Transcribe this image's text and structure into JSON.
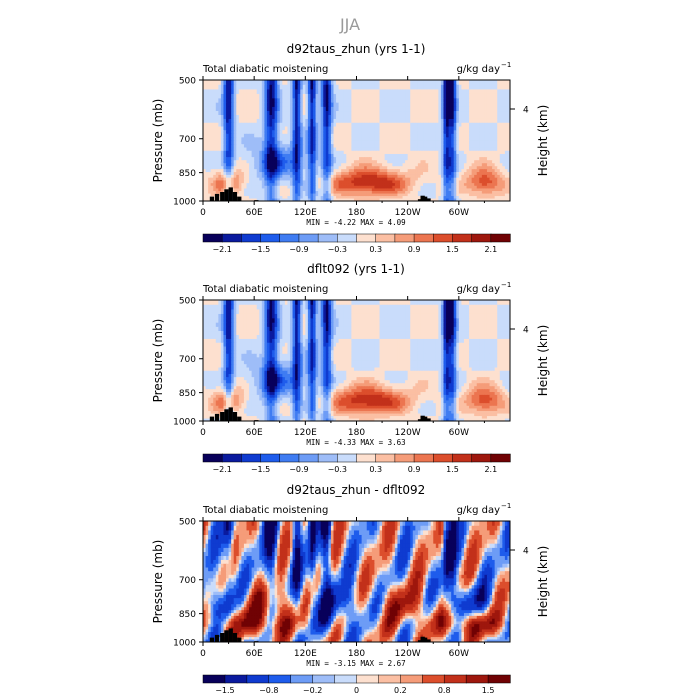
{
  "figure_title": "JJA",
  "chart_data": [
    {
      "type": "heatmap",
      "title": "d92taus_zhun (yrs 1-1)",
      "left_string": "Total diabatic moistening",
      "units": "g/kg day",
      "units_exp": "−1",
      "ylabel": "Pressure (mb)",
      "y2label": "Height (km)",
      "y_ticks": [
        "500",
        "700",
        "850",
        "1000"
      ],
      "y2_ticks": [
        "4"
      ],
      "x_ticks": [
        "0",
        "60E",
        "120E",
        "180",
        "120W",
        "60W"
      ],
      "stats_text": "MIN =   -4.22   MAX =   4.09",
      "min": -4.22,
      "max": 4.09,
      "colorbar_labels": [
        "−2.1",
        "−1.5",
        "−0.9",
        "−0.3",
        "0.3",
        "0.9",
        "1.5",
        "2.1"
      ],
      "colorbar_levels": [
        -2.4,
        -2.1,
        -1.8,
        -1.5,
        -1.2,
        -0.9,
        -0.6,
        -0.3,
        0,
        0.3,
        0.6,
        0.9,
        1.2,
        1.5,
        1.8,
        2.1,
        2.4
      ]
    },
    {
      "type": "heatmap",
      "title": "dflt092 (yrs 1-1)",
      "left_string": "Total diabatic moistening",
      "units": "g/kg day",
      "units_exp": "−1",
      "ylabel": "Pressure (mb)",
      "y2label": "Height (km)",
      "y_ticks": [
        "500",
        "700",
        "850",
        "1000"
      ],
      "y2_ticks": [
        "4"
      ],
      "x_ticks": [
        "0",
        "60E",
        "120E",
        "180",
        "120W",
        "60W"
      ],
      "stats_text": "MIN =   -4.33   MAX =   3.63",
      "min": -4.33,
      "max": 3.63,
      "colorbar_labels": [
        "−2.1",
        "−1.5",
        "−0.9",
        "−0.3",
        "0.3",
        "0.9",
        "1.5",
        "2.1"
      ],
      "colorbar_levels": [
        -2.4,
        -2.1,
        -1.8,
        -1.5,
        -1.2,
        -0.9,
        -0.6,
        -0.3,
        0,
        0.3,
        0.6,
        0.9,
        1.2,
        1.5,
        1.8,
        2.1,
        2.4
      ]
    },
    {
      "type": "heatmap",
      "title": "d92taus_zhun - dflt092",
      "left_string": "Total diabatic moistening",
      "units": "g/kg day",
      "units_exp": "−1",
      "ylabel": "Pressure (mb)",
      "y2label": "Height (km)",
      "y_ticks": [
        "500",
        "700",
        "850",
        "1000"
      ],
      "y2_ticks": [
        "4"
      ],
      "x_ticks": [
        "0",
        "60E",
        "120E",
        "180",
        "120W",
        "60W"
      ],
      "stats_text": "MIN =   -3.15   MAX =   2.67",
      "min": -3.15,
      "max": 2.67,
      "colorbar_labels": [
        "−1.5",
        "−0.8",
        "−0.2",
        "0",
        "0.2",
        "0.8",
        "1.5"
      ],
      "colorbar_levels": [
        -2.0,
        -1.5,
        -1.2,
        -0.8,
        -0.5,
        -0.2,
        -0.1,
        0,
        0.1,
        0.2,
        0.5,
        0.8,
        1.2,
        1.5,
        2.0
      ]
    }
  ],
  "colors": {
    "palette": [
      "#08005a",
      "#0a1a9e",
      "#0f3bd0",
      "#1e5cec",
      "#3f7cf2",
      "#6d9cf6",
      "#9ebdf8",
      "#c9dcfb",
      "#fde0cf",
      "#fbbfa3",
      "#f59c79",
      "#ec7550",
      "#dc4e2c",
      "#c2301a",
      "#9e170d",
      "#700204"
    ],
    "terrain": "#000000"
  }
}
